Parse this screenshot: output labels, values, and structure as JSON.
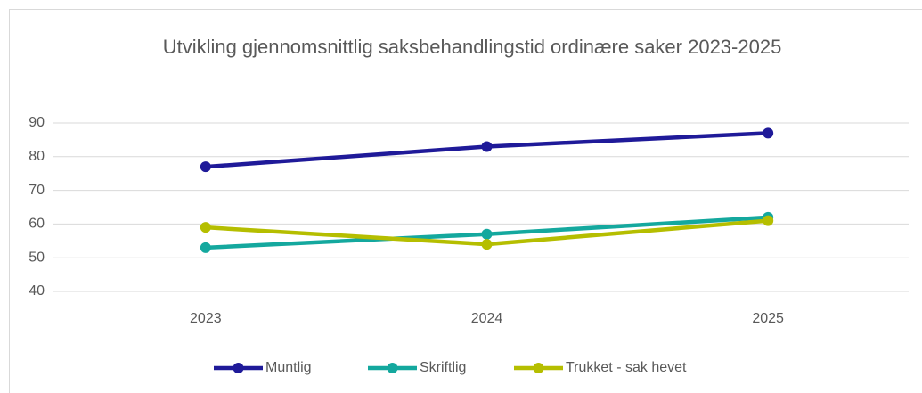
{
  "chart_data": {
    "type": "line",
    "title": "Utvikling gjennomsnittlig saksbehandlingstid ordinære saker 2023-2025",
    "categories": [
      "2023",
      "2024",
      "2025"
    ],
    "series": [
      {
        "name": "Muntlig",
        "color": "#1f1a99",
        "values": [
          77,
          83,
          87
        ]
      },
      {
        "name": "Skriftlig",
        "color": "#14a89e",
        "values": [
          53,
          57,
          62
        ]
      },
      {
        "name": "Trukket - sak hevet",
        "color": "#b5be00",
        "values": [
          59,
          54,
          61
        ]
      }
    ],
    "ylim": [
      40,
      90
    ],
    "yticks": [
      40,
      50,
      60,
      70,
      80,
      90
    ],
    "grid": true,
    "legend": "bottom"
  }
}
